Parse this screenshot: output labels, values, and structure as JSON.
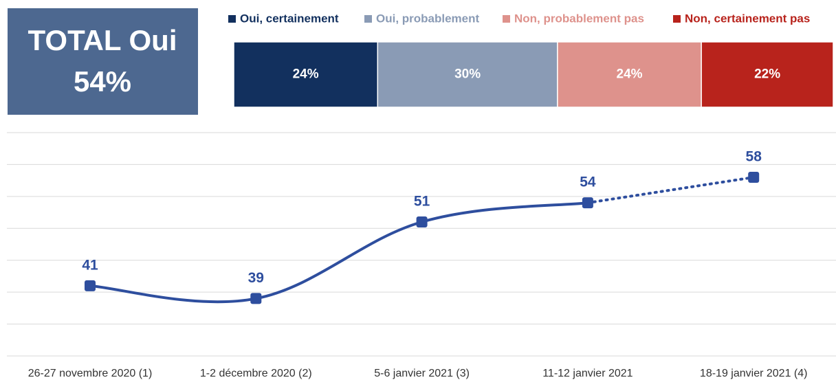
{
  "summary": {
    "title": "TOTAL Oui",
    "value": "54%"
  },
  "chart_data": [
    {
      "type": "bar",
      "orientation": "horizontal",
      "stacked": true,
      "xlim": [
        0,
        100
      ],
      "legend": "top",
      "series": [
        {
          "name": "Oui, certainement",
          "color": "#12305e",
          "values": [
            24
          ],
          "value_labels": [
            "24%"
          ]
        },
        {
          "name": "Oui, probablement",
          "color": "#8a9bb5",
          "values": [
            30
          ],
          "value_labels": [
            "30%"
          ]
        },
        {
          "name": "Non, probablement pas",
          "color": "#de928c",
          "values": [
            24
          ],
          "value_labels": [
            "24%"
          ]
        },
        {
          "name": "Non, certainement pas",
          "color": "#b8231c",
          "values": [
            22
          ],
          "value_labels": [
            "22%"
          ]
        }
      ]
    },
    {
      "type": "line",
      "color": "#2e4e9e",
      "grid": true,
      "categories": [
        "26-27 novembre 2020 (1)",
        "1-2 décembre 2020 (2)",
        "5-6 janvier 2021 (3)",
        "11-12 janvier 2021",
        "18-19 janvier 2021 (4)"
      ],
      "values": [
        41,
        39,
        51,
        54,
        58
      ],
      "dotted_from_index": 3,
      "ylim": [
        30,
        65
      ],
      "yticks": [
        30,
        35,
        40,
        45,
        50,
        55,
        60,
        65
      ]
    }
  ]
}
